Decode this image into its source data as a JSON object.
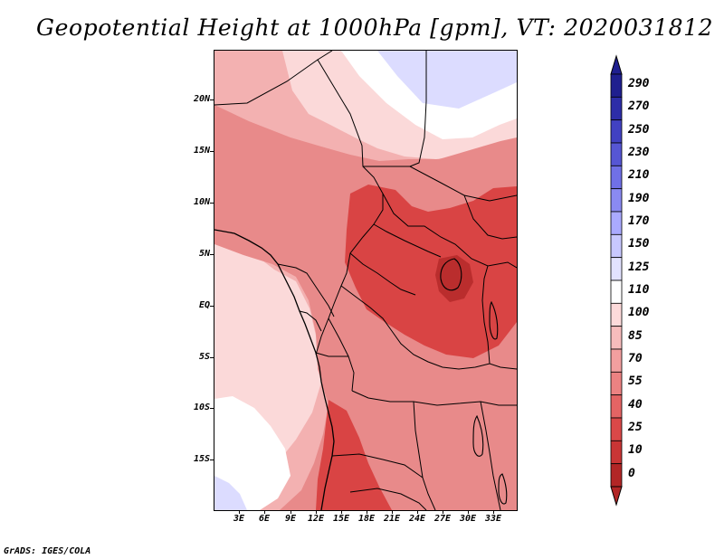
{
  "title": "Geopotential Height at 1000hPa [gpm], VT: 2020031812",
  "map": {
    "colors": {
      "deep_red": "#ba2d2d",
      "red": "#d94444",
      "light_red": "#e88a8a",
      "pink": "#f3b1b1",
      "pale_pink": "#fbd9d9",
      "white": "#ffffff",
      "lavender": "#dcdcff",
      "blue": "#b5b5ff"
    },
    "latitude_labels": [
      "20N",
      "15N",
      "10N",
      "5N",
      "EQ",
      "5S",
      "10S",
      "15S"
    ],
    "longitude_labels": [
      "3E",
      "6E",
      "9E",
      "12E",
      "15E",
      "18E",
      "21E",
      "24E",
      "27E",
      "30E",
      "33E"
    ]
  },
  "legend": {
    "labels": [
      "290",
      "270",
      "250",
      "230",
      "210",
      "190",
      "170",
      "150",
      "125",
      "110",
      "100",
      "85",
      "70",
      "55",
      "40",
      "25",
      "10",
      "0"
    ],
    "colors": [
      "#1f1f8f",
      "#2d2da8",
      "#4141c2",
      "#5656d4",
      "#7070e6",
      "#8a8af2",
      "#aaaaff",
      "#c8c8ff",
      "#e2e2ff",
      "#ffffff",
      "#fddada",
      "#f7bcbc",
      "#f29f9f",
      "#ec8282",
      "#e46464",
      "#da4848",
      "#c93535",
      "#b22626"
    ]
  },
  "footer": "GrADS: IGES/COLA"
}
